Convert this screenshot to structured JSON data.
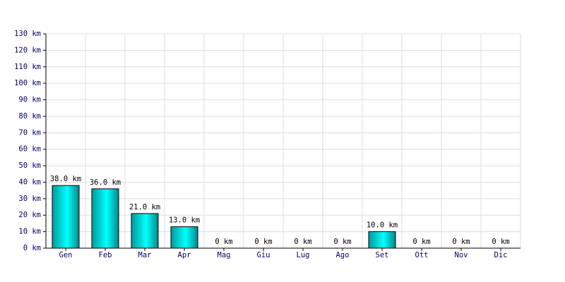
{
  "chart_data": {
    "type": "bar",
    "categories": [
      "Gen",
      "Feb",
      "Mar",
      "Apr",
      "Mag",
      "Giu",
      "Lug",
      "Ago",
      "Set",
      "Ott",
      "Nov",
      "Dic"
    ],
    "values": [
      38,
      36,
      21,
      13,
      0,
      0,
      0,
      0,
      10,
      0,
      0,
      0
    ],
    "value_labels": [
      "38.0 km",
      "36.0 km",
      "21.0 km",
      "13.0 km",
      "0 km",
      "0 km",
      "0 km",
      "0 km",
      "10.0 km",
      "0 km",
      "0 km",
      "0 km"
    ],
    "color": "#00e0e0",
    "ylim": [
      0,
      130
    ],
    "yticks": [
      {
        "value": 0,
        "label": "0 km"
      },
      {
        "value": 10,
        "label": "10 km"
      },
      {
        "value": 20,
        "label": "20 km"
      },
      {
        "value": 30,
        "label": "30 km"
      },
      {
        "value": 40,
        "label": "40 km"
      },
      {
        "value": 50,
        "label": "50 km"
      },
      {
        "value": 60,
        "label": "60 km"
      },
      {
        "value": 70,
        "label": "70 km"
      },
      {
        "value": 80,
        "label": "80 km"
      },
      {
        "value": 90,
        "label": "90 km"
      },
      {
        "value": 100,
        "label": "100 km"
      },
      {
        "value": 110,
        "label": "110 km"
      },
      {
        "value": 120,
        "label": "120 km"
      },
      {
        "value": 130,
        "label": "130 km"
      }
    ],
    "grid": true
  }
}
